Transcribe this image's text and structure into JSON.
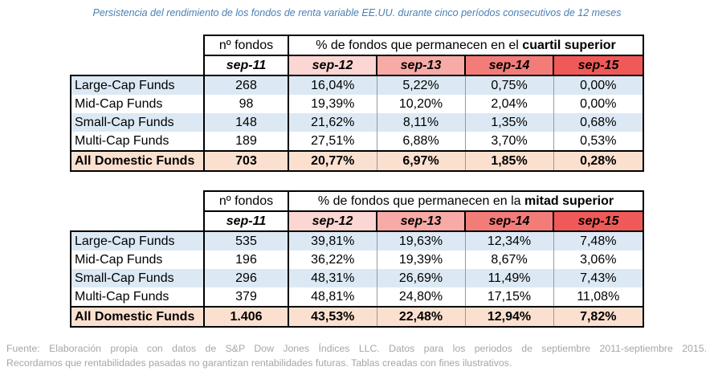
{
  "caption": "Persistencia del rendimiento de los fondos de renta variable EE.UU. durante cinco períodos consecutivos de 12 meses",
  "tables": [
    {
      "fondos_header": "nº fondos",
      "group_prefix": "% de fondos que permanecen en el ",
      "group_bold": "cuartil superior",
      "years": [
        "sep-11",
        "sep-12",
        "sep-13",
        "sep-14",
        "sep-15"
      ],
      "rows": [
        {
          "label": "Large-Cap Funds",
          "fondos": "268",
          "v": [
            "16,04%",
            "5,22%",
            "0,75%",
            "0,00%"
          ]
        },
        {
          "label": "Mid-Cap Funds",
          "fondos": "98",
          "v": [
            "19,39%",
            "10,20%",
            "2,04%",
            "0,00%"
          ]
        },
        {
          "label": "Small-Cap Funds",
          "fondos": "148",
          "v": [
            "21,62%",
            "8,11%",
            "1,35%",
            "0,68%"
          ]
        },
        {
          "label": "Multi-Cap Funds",
          "fondos": "189",
          "v": [
            "27,51%",
            "6,88%",
            "3,70%",
            "0,53%"
          ]
        }
      ],
      "total": {
        "label": "All Domestic Funds",
        "fondos": "703",
        "v": [
          "20,77%",
          "6,97%",
          "1,85%",
          "0,28%"
        ]
      }
    },
    {
      "fondos_header": "nº fondos",
      "group_prefix": "% de fondos que permanecen en la ",
      "group_bold": "mitad superior",
      "years": [
        "sep-11",
        "sep-12",
        "sep-13",
        "sep-14",
        "sep-15"
      ],
      "rows": [
        {
          "label": "Large-Cap Funds",
          "fondos": "535",
          "v": [
            "39,81%",
            "19,63%",
            "12,34%",
            "7,48%"
          ]
        },
        {
          "label": "Mid-Cap Funds",
          "fondos": "196",
          "v": [
            "36,22%",
            "19,39%",
            "8,67%",
            "3,06%"
          ]
        },
        {
          "label": "Small-Cap Funds",
          "fondos": "296",
          "v": [
            "48,31%",
            "26,69%",
            "11,49%",
            "7,43%"
          ]
        },
        {
          "label": "Multi-Cap Funds",
          "fondos": "379",
          "v": [
            "48,81%",
            "24,80%",
            "17,15%",
            "11,08%"
          ]
        }
      ],
      "total": {
        "label": "All Domestic Funds",
        "fondos": "1.406",
        "v": [
          "43,53%",
          "22,48%",
          "12,94%",
          "7,82%"
        ]
      }
    }
  ],
  "source": {
    "line1": "Fuente: Elaboración propia con datos de S&P Dow Jones Índices LLC. Datos para los periodos de septiembre 2011-septiembre 2015.",
    "line2": "Recordamos que rentabilidades pasadas no garantizan rentabilidades futuras. Tablas creadas con fines ilustrativos."
  }
}
